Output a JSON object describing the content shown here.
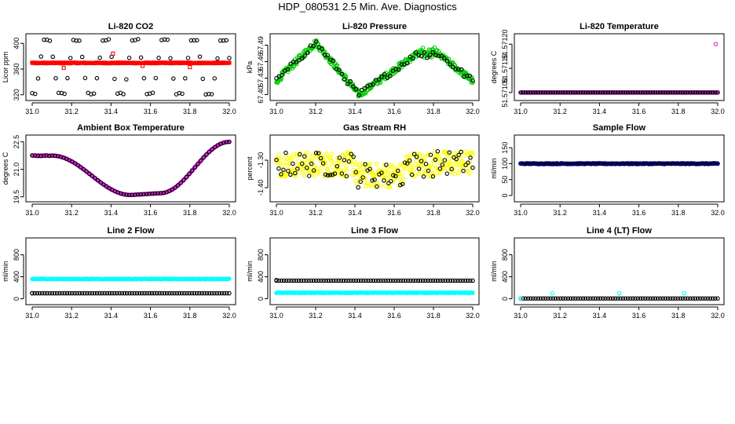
{
  "page_title": "HDP_080531  2.5 Min. Ave. Diagnostics",
  "colors": {
    "black": "#000000",
    "red": "#ff0000",
    "green": "#00cc00",
    "magenta": "#e020e0",
    "yellow": "#ffff00",
    "blue": "#0000ff",
    "cyan": "#00ffff"
  },
  "chart_data": [
    {
      "id": "co2",
      "type": "scatter",
      "title": "Li-820 CO2",
      "ylabel": "Licor ppm",
      "xlim": [
        31.0,
        32.0
      ],
      "ylim": [
        316,
        410
      ],
      "yticks": [
        320,
        360,
        400
      ],
      "ytick_labels": [
        "320",
        "360",
        "400"
      ],
      "xticks": [
        31.0,
        31.2,
        31.4,
        31.6,
        31.8,
        32.0
      ],
      "xtick_labels": [
        "31.0",
        "31.2",
        "31.4",
        "31.6",
        "31.8",
        "32.0"
      ],
      "series": [
        {
          "name": "black",
          "color": "#000000",
          "shape": "circle",
          "pattern": "co2_scatter"
        },
        {
          "name": "red",
          "color": "#ff0000",
          "shape": "square",
          "pattern": "co2_flat"
        }
      ]
    },
    {
      "id": "pressure",
      "type": "scatter",
      "title": "Li-820 Pressure",
      "ylabel": "kPa",
      "xlim": [
        31.0,
        32.0
      ],
      "ylim": [
        67.395,
        67.505
      ],
      "yticks": [
        67.4,
        67.43,
        67.46,
        67.49
      ],
      "ytick_labels": [
        "67.40",
        "67.43",
        "67.46",
        "67.49"
      ],
      "xticks": [
        31.0,
        31.2,
        31.4,
        31.6,
        31.8,
        32.0
      ],
      "xtick_labels": [
        "31.0",
        "31.2",
        "31.4",
        "31.6",
        "31.8",
        "32.0"
      ],
      "series": [
        {
          "name": "green",
          "color": "#00cc00",
          "shape": "circle",
          "pattern": "pressure_wave"
        },
        {
          "name": "black",
          "color": "#000000",
          "shape": "circle",
          "pattern": "pressure_sparse"
        }
      ]
    },
    {
      "id": "licor_temp",
      "type": "scatter",
      "title": "Li-820 Temperature",
      "ylabel": "degrees C",
      "xlim": [
        31.0,
        32.0
      ],
      "ylim": [
        51.57098,
        51.57123
      ],
      "yticks": [
        51.571,
        51.5711,
        51.5712
      ],
      "ytick_labels": [
        "51.57100",
        "51.57110",
        "51.57120"
      ],
      "xticks": [
        31.0,
        31.2,
        31.4,
        31.6,
        31.8,
        32.0
      ],
      "xtick_labels": [
        "31.0",
        "31.2",
        "31.4",
        "31.6",
        "31.8",
        "32.0"
      ],
      "series": [
        {
          "name": "magenta",
          "color": "#e020e0",
          "shape": "circle",
          "pattern": "licor_temp_flat"
        },
        {
          "name": "black",
          "color": "#000000",
          "shape": "circle",
          "pattern": "licor_temp_flat_sparse"
        }
      ]
    },
    {
      "id": "ambient_temp",
      "type": "scatter",
      "title": "Ambient Box Temperature",
      "ylabel": "degrees C",
      "xlim": [
        31.0,
        32.0
      ],
      "ylim": [
        19.4,
        22.7
      ],
      "yticks": [
        19.5,
        21.0,
        22.5
      ],
      "ytick_labels": [
        "19.5",
        "21.0",
        "22.5"
      ],
      "xticks": [
        31.0,
        31.2,
        31.4,
        31.6,
        31.8,
        32.0
      ],
      "xtick_labels": [
        "31.0",
        "31.2",
        "31.4",
        "31.6",
        "31.8",
        "32.0"
      ],
      "series": [
        {
          "name": "magenta",
          "color": "#e020e0",
          "shape": "circle",
          "pattern": "ambient_curve"
        },
        {
          "name": "black",
          "color": "#000000",
          "shape": "circle",
          "pattern": "ambient_curve_sparse"
        }
      ]
    },
    {
      "id": "rh",
      "type": "scatter",
      "title": "Gas Stream RH",
      "ylabel": "percent",
      "xlim": [
        31.0,
        32.0
      ],
      "ylim": [
        -1.44,
        -1.22
      ],
      "yticks": [
        -1.4,
        -1.3
      ],
      "ytick_labels": [
        "-1.40",
        "-1.30"
      ],
      "xticks": [
        31.0,
        31.2,
        31.4,
        31.6,
        31.8,
        32.0
      ],
      "xtick_labels": [
        "31.0",
        "31.2",
        "31.4",
        "31.6",
        "31.8",
        "32.0"
      ],
      "series": [
        {
          "name": "yellow",
          "color": "#ffff00",
          "shape": "circle",
          "pattern": "rh_noise"
        },
        {
          "name": "black",
          "color": "#000000",
          "shape": "circle",
          "pattern": "rh_noise_sparse"
        }
      ]
    },
    {
      "id": "sample_flow",
      "type": "scatter",
      "title": "Sample Flow",
      "ylabel": "ml/min",
      "xlim": [
        31.0,
        32.0
      ],
      "ylim": [
        -10,
        180
      ],
      "yticks": [
        0,
        50,
        100,
        150
      ],
      "ytick_labels": [
        "0",
        "50",
        "100",
        "150"
      ],
      "xticks": [
        31.0,
        31.2,
        31.4,
        31.6,
        31.8,
        32.0
      ],
      "xtick_labels": [
        "31.0",
        "31.2",
        "31.4",
        "31.6",
        "31.8",
        "32.0"
      ],
      "series": [
        {
          "name": "blue",
          "color": "#0000ff",
          "shape": "circle",
          "pattern": "sample_flow"
        },
        {
          "name": "black",
          "color": "#000000",
          "shape": "circle",
          "pattern": "sample_flow_sparse"
        }
      ]
    },
    {
      "id": "line2",
      "type": "scatter",
      "title": "Line 2 Flow",
      "ylabel": "ml/min",
      "xlim": [
        31.0,
        32.0
      ],
      "ylim": [
        -50,
        1050
      ],
      "yticks": [
        0,
        400,
        800
      ],
      "ytick_labels": [
        "0",
        "400",
        "800"
      ],
      "xticks": [
        31.0,
        31.2,
        31.4,
        31.6,
        31.8,
        32.0
      ],
      "xtick_labels": [
        "31.0",
        "31.2",
        "31.4",
        "31.6",
        "31.8",
        "32.0"
      ],
      "series": [
        {
          "name": "cyan",
          "color": "#00ffff",
          "shape": "circle",
          "pattern": "line2_high"
        },
        {
          "name": "black",
          "color": "#000000",
          "shape": "circle",
          "pattern": "line2_low"
        }
      ]
    },
    {
      "id": "line3",
      "type": "scatter",
      "title": "Line 3 Flow",
      "ylabel": "ml/min",
      "xlim": [
        31.0,
        32.0
      ],
      "ylim": [
        -50,
        1050
      ],
      "yticks": [
        0,
        400,
        800
      ],
      "ytick_labels": [
        "0",
        "400",
        "800"
      ],
      "xticks": [
        31.0,
        31.2,
        31.4,
        31.6,
        31.8,
        32.0
      ],
      "xtick_labels": [
        "31.0",
        "31.2",
        "31.4",
        "31.6",
        "31.8",
        "32.0"
      ],
      "series": [
        {
          "name": "black",
          "color": "#000000",
          "shape": "circle",
          "pattern": "line3_high"
        },
        {
          "name": "cyan",
          "color": "#00ffff",
          "shape": "circle",
          "pattern": "line3_low"
        }
      ]
    },
    {
      "id": "line4",
      "type": "scatter",
      "title": "Line 4 (LT) Flow",
      "ylabel": "ml/min",
      "xlim": [
        31.0,
        32.0
      ],
      "ylim": [
        -50,
        1050
      ],
      "yticks": [
        0,
        400,
        800
      ],
      "ytick_labels": [
        "0",
        "400",
        "800"
      ],
      "xticks": [
        31.0,
        31.2,
        31.4,
        31.6,
        31.8,
        32.0
      ],
      "xtick_labels": [
        "31.0",
        "31.2",
        "31.4",
        "31.6",
        "31.8",
        "32.0"
      ],
      "series": [
        {
          "name": "black",
          "color": "#000000",
          "shape": "circle",
          "pattern": "line4_zero"
        },
        {
          "name": "cyan",
          "color": "#00ffff",
          "shape": "circle",
          "pattern": "line4_spikes"
        }
      ]
    }
  ]
}
